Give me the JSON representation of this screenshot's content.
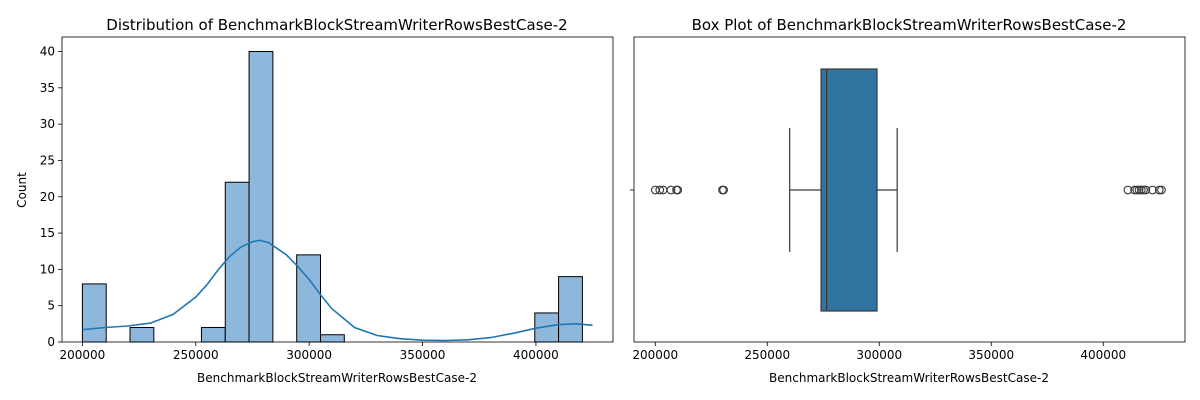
{
  "colors": {
    "hist_fill": "#8db8db",
    "hist_edge": "#000000",
    "kde_line": "#1f77b4",
    "box_fill": "#3274a1",
    "box_edge": "#3a3a3a"
  },
  "chart_data": [
    {
      "type": "bar",
      "title": "Distribution of BenchmarkBlockStreamWriterRowsBestCase-2",
      "xlabel": "BenchmarkBlockStreamWriterRowsBestCase-2",
      "ylabel": "Count",
      "xlim": [
        191000,
        434000
      ],
      "ylim": [
        0,
        42
      ],
      "xticks": [
        200000,
        250000,
        300000,
        350000,
        400000
      ],
      "yticks": [
        0,
        5,
        10,
        15,
        20,
        25,
        30,
        35,
        40
      ],
      "bins": [
        {
          "x0": 200000,
          "x1": 210500,
          "count": 8
        },
        {
          "x0": 221000,
          "x1": 231500,
          "count": 2
        },
        {
          "x0": 252500,
          "x1": 263000,
          "count": 2
        },
        {
          "x0": 263000,
          "x1": 273500,
          "count": 22
        },
        {
          "x0": 273500,
          "x1": 284000,
          "count": 40
        },
        {
          "x0": 294500,
          "x1": 305000,
          "count": 12
        },
        {
          "x0": 305000,
          "x1": 315500,
          "count": 1
        },
        {
          "x0": 399500,
          "x1": 410000,
          "count": 4
        },
        {
          "x0": 410000,
          "x1": 420500,
          "count": 9
        }
      ],
      "kde": {
        "x": [
          200000,
          210000,
          220000,
          230000,
          240000,
          250000,
          255000,
          260000,
          265000,
          270000,
          275000,
          278000,
          282000,
          290000,
          295000,
          300000,
          305000,
          310000,
          320000,
          330000,
          340000,
          350000,
          360000,
          370000,
          380000,
          390000,
          400000,
          410000,
          418000,
          425000
        ],
        "y": [
          1.7,
          2.0,
          2.2,
          2.6,
          3.8,
          6.2,
          7.9,
          10.0,
          11.8,
          13.1,
          13.8,
          14.0,
          13.7,
          12.0,
          10.4,
          8.6,
          6.5,
          4.6,
          2.0,
          0.9,
          0.45,
          0.25,
          0.2,
          0.3,
          0.6,
          1.2,
          1.9,
          2.4,
          2.5,
          2.3
        ]
      }
    },
    {
      "type": "box",
      "title": "Box Plot of BenchmarkBlockStreamWriterRowsBestCase-2",
      "xlabel": "BenchmarkBlockStreamWriterRowsBestCase-2",
      "xlim": [
        190500,
        436500
      ],
      "xticks": [
        200000,
        250000,
        300000,
        350000,
        400000
      ],
      "box": {
        "whisker_low": 260000,
        "q1": 274000,
        "median": 276500,
        "q3": 299000,
        "whisker_high": 308000
      },
      "outliers": [
        200000,
        202000,
        203500,
        207000,
        209500,
        210000,
        230000,
        230500,
        411000,
        414000,
        415000,
        416000,
        417000,
        418000,
        419000,
        422000,
        425000,
        426000
      ]
    }
  ]
}
